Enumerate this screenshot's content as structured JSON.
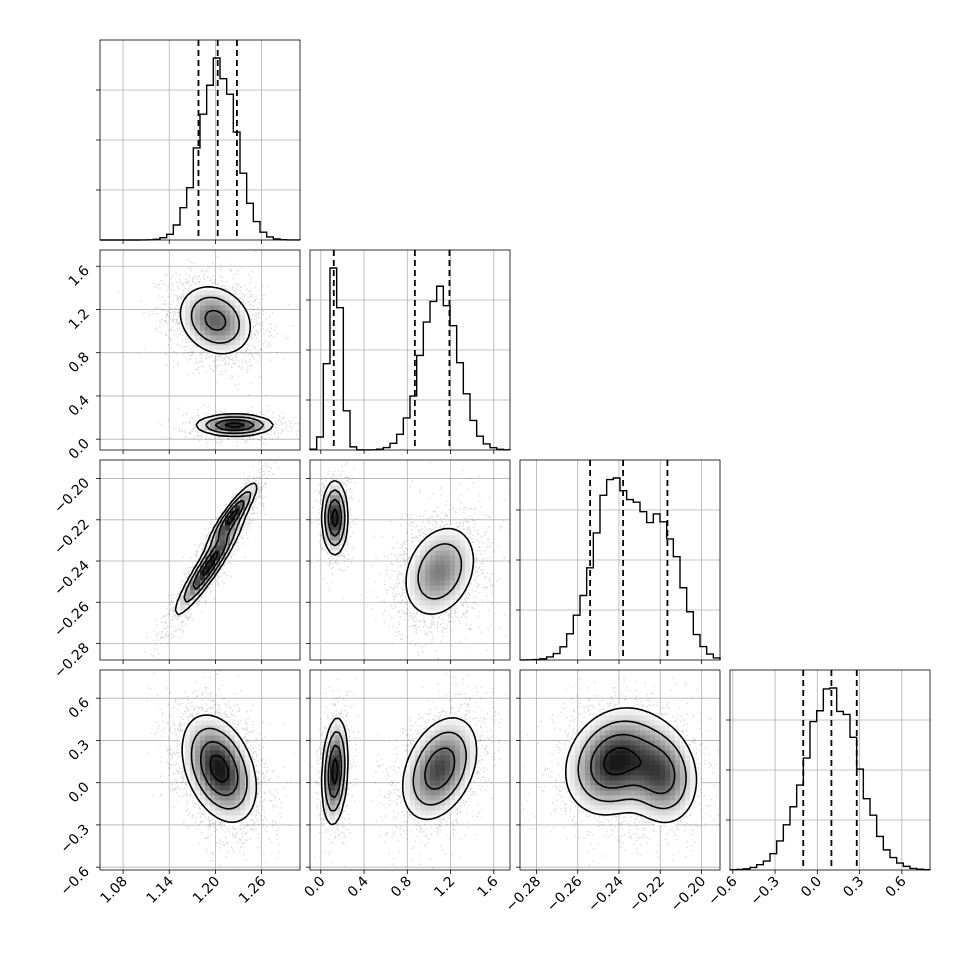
{
  "chart_data": {
    "type": "corner",
    "parameters": [
      {
        "range": [
          1.05,
          1.31
        ],
        "ticks": [
          1.08,
          1.14,
          1.2,
          1.26
        ],
        "tick_labels": [
          "1.08",
          "1.14",
          "1.20",
          "1.26"
        ],
        "quantiles": [
          1.178,
          1.203,
          1.228
        ],
        "modes": [
          {
            "mu": 1.203,
            "sd": 0.024,
            "w": 1
          }
        ]
      },
      {
        "range": [
          -0.1,
          1.75
        ],
        "ticks": [
          0.0,
          0.4,
          0.8,
          1.2,
          1.6
        ],
        "tick_labels": [
          "0.0",
          "0.4",
          "0.8",
          "1.2",
          "1.6"
        ],
        "quantiles": [
          0.12,
          0.87,
          1.19
        ],
        "modes": [
          {
            "mu": 0.13,
            "sd": 0.06,
            "w": 0.3
          },
          {
            "mu": 1.1,
            "sd": 0.17,
            "w": 0.7
          }
        ]
      },
      {
        "range": [
          -0.288,
          -0.191
        ],
        "ticks": [
          -0.28,
          -0.26,
          -0.24,
          -0.22,
          -0.2
        ],
        "tick_labels": [
          "−0.28",
          "−0.26",
          "−0.24",
          "−0.22",
          "−0.20"
        ],
        "quantiles": [
          -0.254,
          -0.238,
          -0.2165
        ],
        "modes": [
          {
            "mu": -0.242,
            "sd": 0.011,
            "w": 0.65
          },
          {
            "mu": -0.218,
            "sd": 0.009,
            "w": 0.35
          }
        ]
      },
      {
        "range": [
          -0.62,
          0.8
        ],
        "ticks": [
          -0.6,
          -0.3,
          0.0,
          0.3,
          0.6
        ],
        "tick_labels": [
          "−0.6",
          "−0.3",
          "0.0",
          "0.3",
          "0.6"
        ],
        "quantiles": [
          -0.1,
          0.1,
          0.28
        ],
        "modes": [
          {
            "mu": 0.1,
            "sd": 0.19,
            "w": 1
          }
        ]
      }
    ],
    "panels_2d": [
      {
        "row": 1,
        "col": 0,
        "blobs": [
          {
            "cx": 1.2,
            "cy": 1.1,
            "sx": 0.025,
            "sy": 0.17,
            "rho": -0.2,
            "w": 0.7
          },
          {
            "cx": 1.225,
            "cy": 0.13,
            "sx": 0.025,
            "sy": 0.05,
            "rho": 0.0,
            "w": 0.3
          }
        ]
      },
      {
        "row": 2,
        "col": 0,
        "blobs": [
          {
            "cx": 1.192,
            "cy": -0.242,
            "sx": 0.022,
            "sy": 0.012,
            "rho": 0.93,
            "w": 0.65
          },
          {
            "cx": 1.222,
            "cy": -0.218,
            "sx": 0.016,
            "sy": 0.008,
            "rho": 0.9,
            "w": 0.35
          }
        ]
      },
      {
        "row": 2,
        "col": 1,
        "blobs": [
          {
            "cx": 0.13,
            "cy": -0.219,
            "sx": 0.06,
            "sy": 0.009,
            "rho": 0.0,
            "w": 0.3
          },
          {
            "cx": 1.1,
            "cy": -0.245,
            "sx": 0.18,
            "sy": 0.012,
            "rho": 0.25,
            "w": 0.7
          }
        ]
      },
      {
        "row": 3,
        "col": 0,
        "blobs": [
          {
            "cx": 1.205,
            "cy": 0.1,
            "sx": 0.024,
            "sy": 0.19,
            "rho": -0.35,
            "w": 1
          }
        ]
      },
      {
        "row": 3,
        "col": 1,
        "blobs": [
          {
            "cx": 0.13,
            "cy": 0.08,
            "sx": 0.06,
            "sy": 0.19,
            "rho": 0.2,
            "w": 0.3
          },
          {
            "cx": 1.1,
            "cy": 0.1,
            "sx": 0.18,
            "sy": 0.19,
            "rho": 0.35,
            "w": 0.7
          }
        ]
      },
      {
        "row": 3,
        "col": 2,
        "blobs": [
          {
            "cx": -0.242,
            "cy": 0.15,
            "sx": 0.012,
            "sy": 0.19,
            "rho": 0.2,
            "w": 0.65
          },
          {
            "cx": -0.219,
            "cy": 0.05,
            "sx": 0.009,
            "sy": 0.18,
            "rho": -0.1,
            "w": 0.35
          }
        ]
      }
    ],
    "contour_levels_sigma": [
      0.5,
      1.0,
      1.5,
      2.0
    ],
    "grid": true,
    "colors": {
      "frame": "#000000",
      "grid": "#b0b0b0",
      "points": "#000000",
      "density_max": "#1a1a1a"
    }
  }
}
